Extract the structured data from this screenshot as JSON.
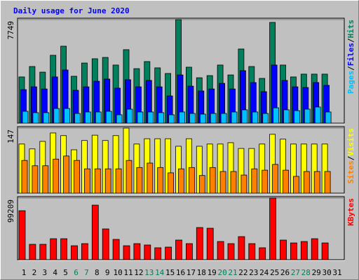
{
  "legend_separator": "/",
  "chart_data": [
    {
      "type": "bar",
      "title": "Daily usage for June 2020",
      "ylim": [
        0,
        7749
      ],
      "yticks": [
        7749
      ],
      "grid": true,
      "series": [
        {
          "name": "Hits",
          "color": "#00805c",
          "values": [
            3460,
            4240,
            3820,
            5080,
            5760,
            3510,
            4500,
            4820,
            4920,
            4350,
            5500,
            4080,
            4610,
            4140,
            3720,
            7749,
            4190,
            3400,
            3560,
            4350,
            3610,
            5550,
            4240,
            3350,
            7540,
            4350,
            3460,
            3670,
            3670,
            3670,
            null
          ]
        },
        {
          "name": "Files",
          "color": "#0000ff",
          "values": [
            2510,
            2720,
            2560,
            3460,
            3980,
            2460,
            2720,
            3140,
            3300,
            2620,
            3250,
            2720,
            3200,
            2720,
            2040,
            3610,
            2770,
            2410,
            2560,
            2980,
            2560,
            3930,
            3040,
            2360,
            4350,
            3200,
            2720,
            2670,
            3040,
            2830,
            null
          ]
        },
        {
          "name": "Pages",
          "color": "#00c0ff",
          "values": [
            890,
            790,
            790,
            1100,
            1100,
            730,
            840,
            840,
            890,
            630,
            1050,
            840,
            840,
            790,
            630,
            840,
            730,
            680,
            730,
            730,
            840,
            1000,
            840,
            730,
            1150,
            1000,
            940,
            1050,
            1210,
            840,
            null
          ]
        }
      ]
    },
    {
      "type": "bar",
      "ylim": [
        0,
        147
      ],
      "yticks": [
        147
      ],
      "grid": true,
      "series": [
        {
          "name": "Visits",
          "color": "#ffff00",
          "values": [
            111,
            100,
            117,
            136,
            130,
            98,
            119,
            131,
            119,
            130,
            147,
            111,
            123,
            123,
            123,
            106,
            123,
            106,
            111,
            111,
            114,
            101,
            101,
            111,
            133,
            122,
            111,
            111,
            111,
            111,
            null
          ]
        },
        {
          "name": "Sites",
          "color": "#ff8000",
          "values": [
            74,
            62,
            62,
            77,
            84,
            74,
            55,
            55,
            55,
            55,
            74,
            58,
            68,
            58,
            46,
            55,
            58,
            40,
            58,
            49,
            49,
            41,
            55,
            52,
            65,
            52,
            38,
            49,
            49,
            49,
            null
          ]
        }
      ]
    },
    {
      "type": "bar",
      "ylim": [
        0,
        99209
      ],
      "yticks": [
        99209
      ],
      "grid": true,
      "categories": [
        "1",
        "2",
        "3",
        "4",
        "5",
        "6",
        "7",
        "8",
        "9",
        "10",
        "11",
        "12",
        "13",
        "14",
        "15",
        "16",
        "17",
        "18",
        "19",
        "20",
        "21",
        "22",
        "23",
        "24",
        "25",
        "26",
        "27",
        "28",
        "29",
        "30",
        "31"
      ],
      "category_colors": [
        "#000000",
        "#000000",
        "#000000",
        "#000000",
        "#000000",
        "#00805c",
        "#00805c",
        "#000000",
        "#000000",
        "#000000",
        "#000000",
        "#000000",
        "#00805c",
        "#00805c",
        "#000000",
        "#000000",
        "#000000",
        "#000000",
        "#000000",
        "#00805c",
        "#00805c",
        "#000000",
        "#000000",
        "#000000",
        "#000000",
        "#000000",
        "#00805c",
        "#00805c",
        "#000000",
        "#000000",
        "#000000"
      ],
      "series": [
        {
          "name": "KBytes",
          "color": "#ff0000",
          "values": [
            78900,
            24800,
            24800,
            33800,
            33800,
            22500,
            25900,
            87900,
            49600,
            32700,
            22500,
            25900,
            23700,
            19200,
            20300,
            31600,
            25900,
            51800,
            50700,
            29300,
            25900,
            37200,
            25900,
            19200,
            99209,
            31600,
            27000,
            29300,
            33800,
            27000,
            null
          ]
        }
      ]
    }
  ]
}
